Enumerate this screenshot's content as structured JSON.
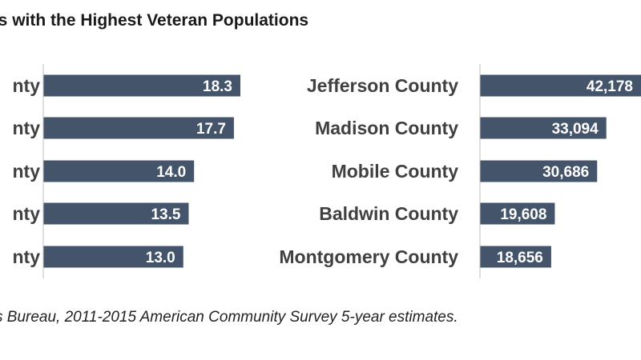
{
  "title": "es with the Highest Veteran Populations",
  "source": "s Bureau, 2011-2015 American Community Survey 5-year estimates.",
  "colors": {
    "bar": "#44546a",
    "bar_label": "#ffffff",
    "category_label": "#404040",
    "axis": "#bfbfbf"
  },
  "chart_data": [
    {
      "type": "bar",
      "orientation": "horizontal",
      "categories": [
        "nty",
        "nty",
        "nty",
        "nty",
        "nty"
      ],
      "values": [
        18.3,
        17.7,
        14.0,
        13.5,
        13.0
      ],
      "value_labels": [
        "18.3",
        "17.7",
        "14.0",
        "13.5",
        "13.0"
      ],
      "xlim": [
        0,
        18.3
      ],
      "grid": false
    },
    {
      "type": "bar",
      "orientation": "horizontal",
      "categories": [
        "Jefferson County",
        "Madison County",
        "Mobile County",
        "Baldwin County",
        "Montgomery County"
      ],
      "values": [
        42178,
        33094,
        30686,
        19608,
        18656
      ],
      "value_labels": [
        "42,178",
        "33,094",
        "30,686",
        "19,608",
        "18,656"
      ],
      "xlim": [
        0,
        42178
      ],
      "grid": false
    }
  ]
}
